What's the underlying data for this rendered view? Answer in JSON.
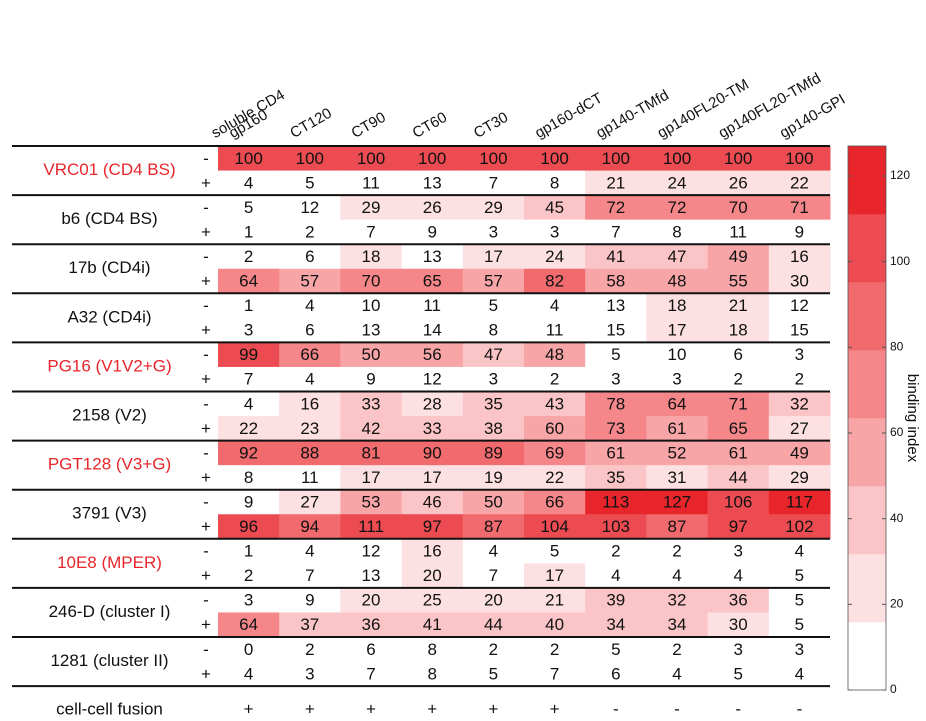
{
  "sign_header": "soluble CD4",
  "columns": [
    "gp160",
    "CT120",
    "CT90",
    "CT60",
    "CT30",
    "gp160-dCT",
    "gp140-TMfd",
    "gp140FL20-TM",
    "gp140FL20-TMfd",
    "gp140-GPI"
  ],
  "groups": [
    {
      "name": "VRC01 (CD4 BS)",
      "color": "#e8252a",
      "rows": [
        {
          "sign": "-",
          "values": [
            100,
            100,
            100,
            100,
            100,
            100,
            100,
            100,
            100,
            100
          ]
        },
        {
          "sign": "+",
          "values": [
            4,
            5,
            11,
            13,
            7,
            8,
            21,
            24,
            26,
            22
          ]
        }
      ]
    },
    {
      "name": "b6 (CD4 BS)",
      "color": "#111111",
      "rows": [
        {
          "sign": "-",
          "values": [
            5,
            12,
            29,
            26,
            29,
            45,
            72,
            72,
            70,
            71
          ]
        },
        {
          "sign": "+",
          "values": [
            1,
            2,
            7,
            9,
            3,
            3,
            7,
            8,
            11,
            9
          ]
        }
      ]
    },
    {
      "name": "17b (CD4i)",
      "color": "#111111",
      "rows": [
        {
          "sign": "-",
          "values": [
            2,
            6,
            18,
            13,
            17,
            24,
            41,
            47,
            49,
            16
          ]
        },
        {
          "sign": "+",
          "values": [
            64,
            57,
            70,
            65,
            57,
            82,
            58,
            48,
            55,
            30
          ]
        }
      ]
    },
    {
      "name": "A32 (CD4i)",
      "color": "#111111",
      "rows": [
        {
          "sign": "-",
          "values": [
            1,
            4,
            10,
            11,
            5,
            4,
            13,
            18,
            21,
            12
          ]
        },
        {
          "sign": "+",
          "values": [
            3,
            6,
            13,
            14,
            8,
            11,
            15,
            17,
            18,
            15
          ]
        }
      ]
    },
    {
      "name": "PG16 (V1V2+G)",
      "color": "#e8252a",
      "rows": [
        {
          "sign": "-",
          "values": [
            99,
            66,
            50,
            56,
            47,
            48,
            5,
            10,
            6,
            3
          ]
        },
        {
          "sign": "+",
          "values": [
            7,
            4,
            9,
            12,
            3,
            2,
            3,
            3,
            2,
            2
          ]
        }
      ]
    },
    {
      "name": "2158 (V2)",
      "color": "#111111",
      "rows": [
        {
          "sign": "-",
          "values": [
            4,
            16,
            33,
            28,
            35,
            43,
            78,
            64,
            71,
            32
          ]
        },
        {
          "sign": "+",
          "values": [
            22,
            23,
            42,
            33,
            38,
            60,
            73,
            61,
            65,
            27
          ]
        }
      ]
    },
    {
      "name": "PGT128 (V3+G)",
      "color": "#e8252a",
      "rows": [
        {
          "sign": "-",
          "values": [
            92,
            88,
            81,
            90,
            89,
            69,
            61,
            52,
            61,
            49
          ]
        },
        {
          "sign": "+",
          "values": [
            8,
            11,
            17,
            17,
            19,
            22,
            35,
            31,
            44,
            29
          ]
        }
      ]
    },
    {
      "name": "3791 (V3)",
      "color": "#111111",
      "rows": [
        {
          "sign": "-",
          "values": [
            9,
            27,
            53,
            46,
            50,
            66,
            113,
            127,
            106,
            117
          ]
        },
        {
          "sign": "+",
          "values": [
            96,
            94,
            111,
            97,
            87,
            104,
            103,
            87,
            97,
            102
          ]
        }
      ]
    },
    {
      "name": "10E8 (MPER)",
      "color": "#e8252a",
      "rows": [
        {
          "sign": "-",
          "values": [
            1,
            4,
            12,
            16,
            4,
            5,
            2,
            2,
            3,
            4
          ]
        },
        {
          "sign": "+",
          "values": [
            2,
            7,
            13,
            20,
            7,
            17,
            4,
            4,
            4,
            5
          ]
        }
      ]
    },
    {
      "name": "246-D (cluster I)",
      "color": "#111111",
      "rows": [
        {
          "sign": "-",
          "values": [
            3,
            9,
            20,
            25,
            20,
            21,
            39,
            32,
            36,
            5
          ]
        },
        {
          "sign": "+",
          "values": [
            64,
            37,
            36,
            41,
            44,
            40,
            34,
            34,
            30,
            5
          ]
        }
      ]
    },
    {
      "name": "1281 (cluster II)",
      "color": "#111111",
      "rows": [
        {
          "sign": "-",
          "values": [
            0,
            2,
            6,
            8,
            2,
            2,
            5,
            2,
            3,
            3
          ]
        },
        {
          "sign": "+",
          "values": [
            4,
            3,
            7,
            8,
            5,
            7,
            6,
            4,
            5,
            4
          ]
        }
      ]
    }
  ],
  "footer": {
    "name": "cell-cell fusion",
    "values": [
      "+",
      "+",
      "+",
      "+",
      "+",
      "+",
      "-",
      "-",
      "-",
      "-"
    ]
  },
  "colorbar": {
    "label": "binding index",
    "lim": [
      0,
      127
    ],
    "ticks": [
      0,
      20,
      40,
      60,
      80,
      100,
      120
    ],
    "colors": [
      "#ffffff",
      "#fde0e1",
      "#fbc5c7",
      "#f8a5a8",
      "#f5878a",
      "#f06a6e",
      "#ec4c51",
      "#e8252a"
    ]
  }
}
